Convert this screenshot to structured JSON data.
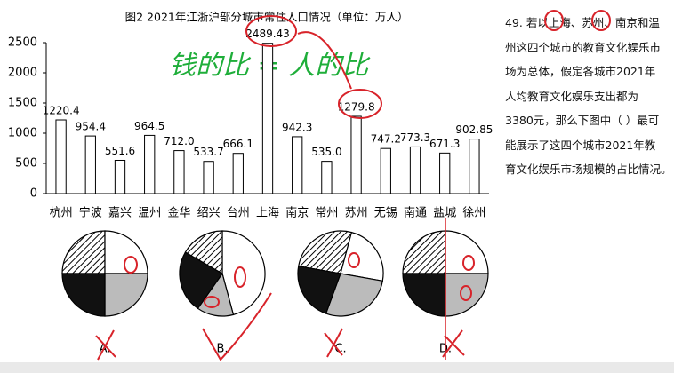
{
  "chart_data": {
    "type": "bar",
    "title": "图2  2021年江浙沪部分城市常住人口情况（单位：万人）",
    "categories": [
      "杭州",
      "宁波",
      "嘉兴",
      "温州",
      "金华",
      "绍兴",
      "台州",
      "上海",
      "南京",
      "常州",
      "苏州",
      "无锡",
      "南通",
      "盐城",
      "徐州"
    ],
    "values": [
      1220.4,
      954.4,
      551.6,
      964.5,
      712.0,
      533.7,
      666.1,
      2489.43,
      942.3,
      535.0,
      1279.8,
      747.2,
      773.3,
      671.3,
      902.85
    ],
    "value_labels": [
      "1220.4",
      "954.4",
      "551.6",
      "964.5",
      "712.0",
      "533.7",
      "666.1",
      "2489.43",
      "942.3",
      "535.0",
      "1279.8",
      "747.2",
      "773.3",
      "671.3",
      "902.85"
    ],
    "color": "#ffffff",
    "ylim": [
      0,
      2500
    ],
    "yticks": [
      0,
      500,
      1000,
      1500,
      2000,
      2500
    ],
    "grid": false
  },
  "annotation": "钱的比 = 人的比",
  "question": {
    "lines": [
      "49. 若以上海、苏州、南京和温",
      "州这四个城市的教育文化娱乐市",
      "场为总体，假定各城市2021年",
      "人均教育文化娱乐支出都为",
      "3380元，那么下图中（  ）最可",
      "能展示了这四个城市2021年教",
      "育文化娱乐市场规模的占比情况。"
    ]
  },
  "options": [
    "A.",
    "B.",
    "C.",
    "D."
  ]
}
